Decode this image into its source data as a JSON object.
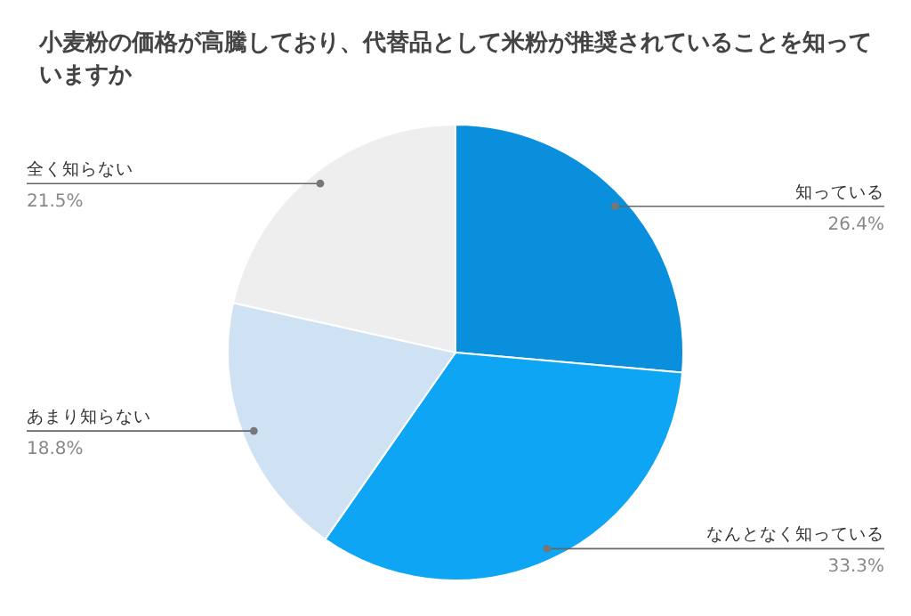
{
  "chart_data": {
    "type": "pie",
    "title": "小麦粉の価格が高騰しており、代替品として米粉が推奨されていることを知っていますか",
    "categories": [
      "知っている",
      "なんとなく知っている",
      "あまり知らない",
      "全く知らない"
    ],
    "values": [
      26.4,
      33.3,
      18.8,
      21.5
    ],
    "colors": [
      "#0a8fdd",
      "#0ea5f4",
      "#cfe2f4",
      "#eeeeee"
    ],
    "value_labels": [
      "26.4%",
      "33.3%",
      "18.8%",
      "21.5%"
    ]
  }
}
